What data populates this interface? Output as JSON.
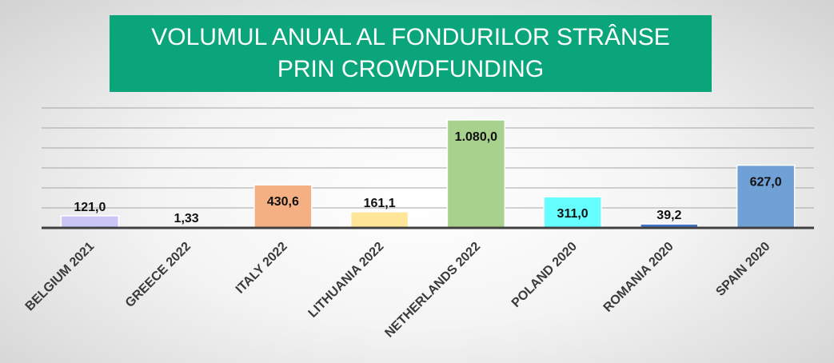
{
  "chart_data": {
    "type": "bar",
    "title": "VOLUMUL ANUAL AL FONDURILOR STRÂNSE PRIN CROWDFUNDING",
    "categories": [
      "BELGIUM 2021",
      "GREECE 2022",
      "ITALY 2022",
      "LITHUANIA 2022",
      "NETHERLANDS 2022",
      "POLAND 2020",
      "ROMANIA 2020",
      "SPAIN 2020"
    ],
    "values": [
      121.0,
      1.33,
      430.6,
      161.1,
      1080.0,
      311.0,
      39.2,
      627.0
    ],
    "data_labels": [
      "121,0",
      "1,33",
      "430,6",
      "161,1",
      "1.080,0",
      "311,0",
      "39,2",
      "627,0"
    ],
    "bar_colors": [
      "#c9c6f5",
      "#d9d9d9",
      "#f4b083",
      "#ffe699",
      "#a9d18e",
      "#66ffff",
      "#4472c4",
      "#6fa0d6"
    ],
    "ylim": [
      0,
      1200
    ],
    "grid": true,
    "legend": "none",
    "xlabel": "",
    "ylabel": ""
  }
}
